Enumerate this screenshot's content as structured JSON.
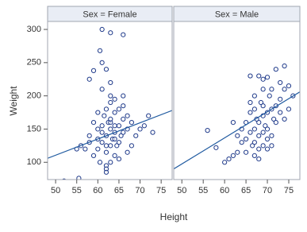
{
  "chart_data": {
    "type": "scatter",
    "xlabel": "Height",
    "ylabel": "Weight",
    "xlim": [
      48.1,
      77.6
    ],
    "ylim": [
      74,
      312
    ],
    "xticks": [
      50,
      55,
      60,
      65,
      70,
      75
    ],
    "yticks": [
      100,
      150,
      200,
      250,
      300
    ],
    "marker_color": "#1f3a8a",
    "fit_color": "#1f5aa0",
    "panels": [
      {
        "title": "Sex = Female",
        "x": [
          62,
          63,
          61,
          64,
          60,
          65,
          62.5,
          63.5,
          61.5,
          64.5,
          59,
          66,
          62,
          63,
          60.5,
          65.5,
          58,
          67,
          61,
          64,
          62,
          63,
          57,
          68,
          60,
          66,
          62,
          64,
          61,
          63,
          69,
          56,
          65,
          60,
          62,
          70,
          59,
          64,
          63,
          61,
          66,
          58,
          67,
          62,
          64,
          60.5,
          63,
          65,
          61,
          71,
          55,
          62,
          63,
          61,
          63,
          66,
          59,
          58,
          52,
          55.5,
          72,
          73,
          68,
          67,
          65,
          62,
          64,
          60,
          66,
          63
        ],
        "y": [
          140,
          150,
          130,
          145,
          120,
          155,
          160,
          135,
          170,
          125,
          110,
          165,
          180,
          190,
          100,
          140,
          130,
          150,
          145,
          175,
          115,
          200,
          120,
          160,
          150,
          185,
          95,
          135,
          210,
          220,
          140,
          125,
          105,
          175,
          240,
          150,
          160,
          110,
          160,
          300,
          292,
          225,
          170,
          90,
          195,
          268,
          295,
          130,
          250,
          155,
          120,
          85,
          100,
          155,
          165,
          200,
          238,
          140,
          72,
          76,
          170,
          145,
          125,
          115,
          180,
          125,
          155,
          135,
          145,
          125
        ],
        "fit": {
          "x": [
            48.1,
            77.6
          ],
          "y": [
            106,
            178
          ]
        }
      },
      {
        "title": "Sex = Male",
        "x": [
          68,
          69,
          67,
          70,
          66,
          71,
          68.5,
          69.5,
          67.5,
          70.5,
          65,
          72,
          68,
          69,
          66.5,
          71.5,
          64,
          73,
          67,
          70,
          68,
          69,
          63,
          74,
          66,
          72,
          68,
          70,
          67,
          69,
          75,
          62,
          71,
          66,
          68,
          76,
          65,
          70,
          69,
          67,
          72,
          74,
          73,
          64,
          70,
          66,
          71,
          61,
          63,
          60,
          56,
          58,
          75,
          62,
          65,
          73,
          71,
          67,
          74,
          69
        ],
        "y": [
          160,
          170,
          150,
          175,
          145,
          180,
          190,
          155,
          165,
          200,
          135,
          185,
          140,
          210,
          125,
          165,
          130,
          195,
          180,
          150,
          120,
          225,
          115,
          210,
          175,
          160,
          105,
          135,
          200,
          145,
          215,
          110,
          140,
          190,
          230,
          200,
          160,
          120,
          185,
          130,
          240,
          245,
          175,
          150,
          228,
          230,
          210,
          105,
          140,
          100,
          148,
          122,
          180,
          160,
          115,
          220,
          125,
          110,
          165,
          125
        ],
        "fit": {
          "x": [
            48.1,
            77.6
          ],
          "y": [
            90,
            206
          ]
        }
      }
    ]
  }
}
